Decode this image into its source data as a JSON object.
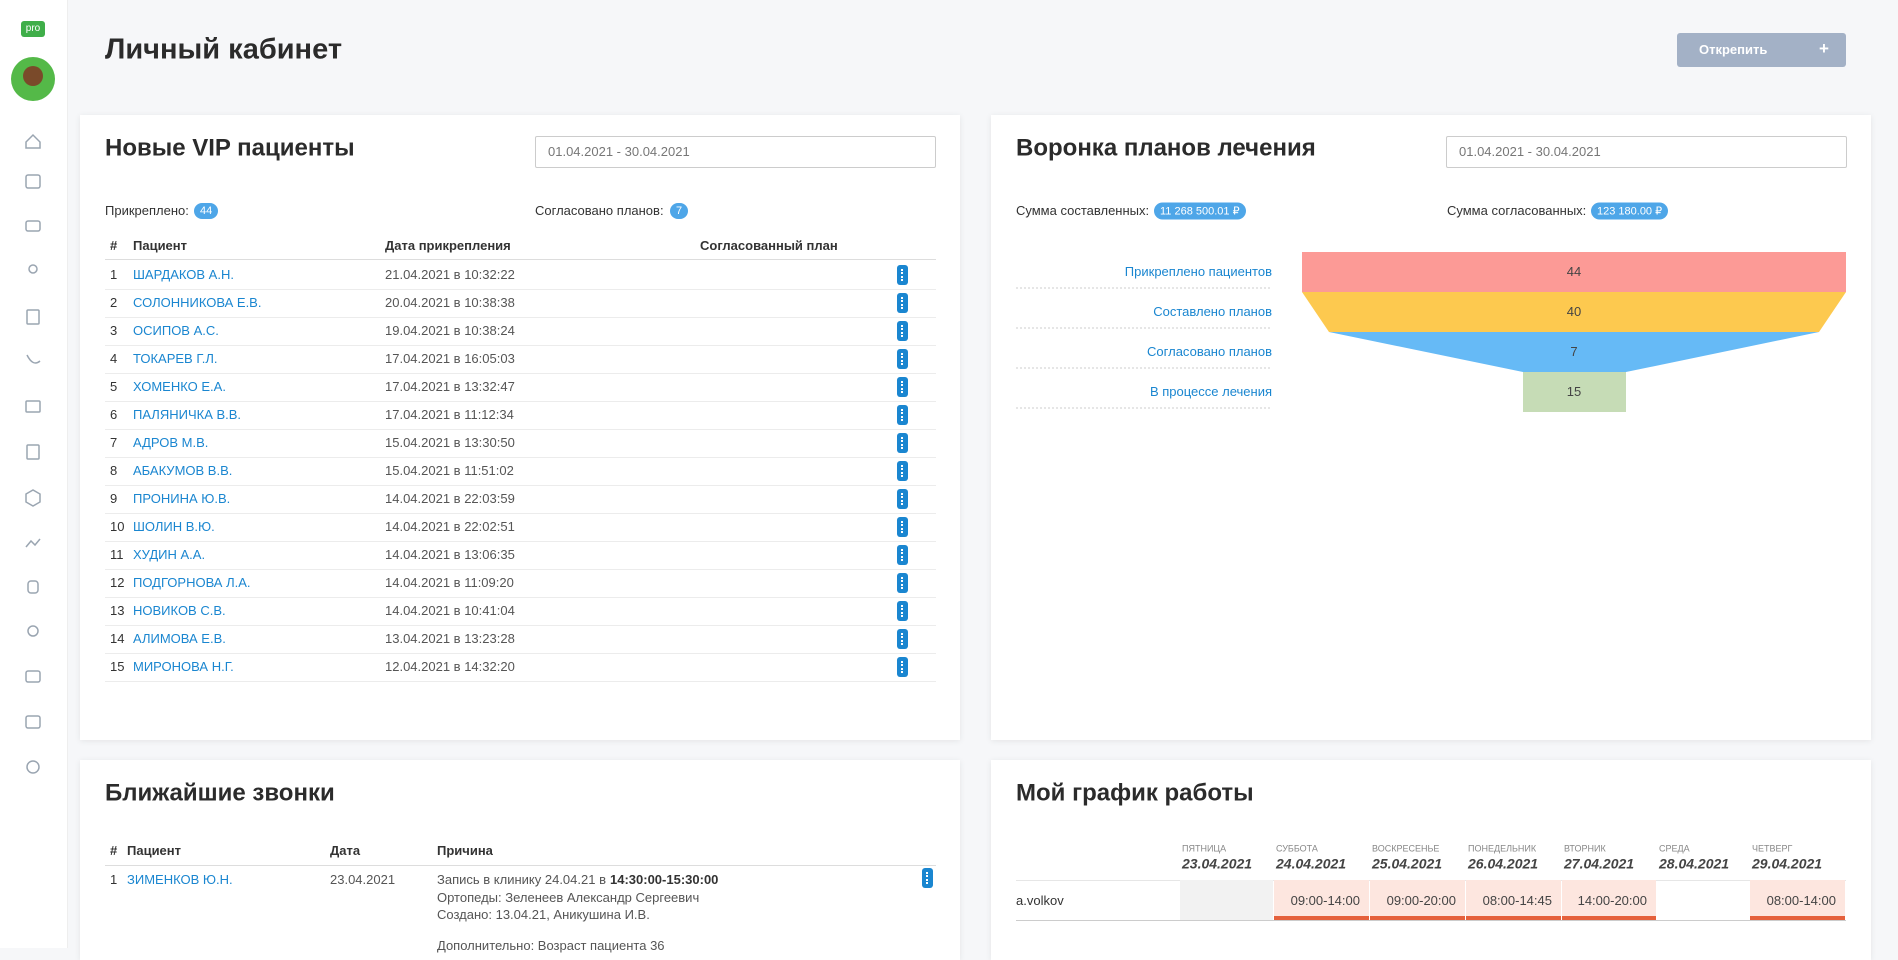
{
  "header": {
    "badge": "pro",
    "title": "Личный кабинет",
    "unpin_button": "Открепить"
  },
  "vip_patients": {
    "title": "Новые VIP пациенты",
    "date_range": "01.04.2021 - 30.04.2021",
    "attached_label": "Прикреплено:",
    "attached_count": 44,
    "agreed_label": "Согласовано планов:",
    "agreed_count": 7,
    "columns": [
      "#",
      "Пациент",
      "Дата прикрепления",
      "Согласованный план"
    ],
    "rows": [
      [
        1,
        "ШАРДАКОВ А.Н.",
        "21.04.2021 в 10:32:22"
      ],
      [
        2,
        "СОЛОННИКОВА Е.В.",
        "20.04.2021 в 10:38:38"
      ],
      [
        3,
        "ОСИПОВ А.С.",
        "19.04.2021 в 10:38:24"
      ],
      [
        4,
        "ТОКАРЕВ Г.Л.",
        "17.04.2021 в 16:05:03"
      ],
      [
        5,
        "ХОМЕНКО Е.А.",
        "17.04.2021 в 13:32:47"
      ],
      [
        6,
        "ПАЛЯНИЧКА В.В.",
        "17.04.2021 в 11:12:34"
      ],
      [
        7,
        "АДРОВ М.В.",
        "15.04.2021 в 13:30:50"
      ],
      [
        8,
        "АБАКУМОВ В.В.",
        "15.04.2021 в 11:51:02"
      ],
      [
        9,
        "ПРОНИНА Ю.В.",
        "14.04.2021 в 22:03:59"
      ],
      [
        10,
        "ШОЛИН В.Ю.",
        "14.04.2021 в 22:02:51"
      ],
      [
        11,
        "ХУДИН А.А.",
        "14.04.2021 в 13:06:35"
      ],
      [
        12,
        "ПОДГОРНОВА Л.А.",
        "14.04.2021 в 11:09:20"
      ],
      [
        13,
        "НОВИКОВ С.В.",
        "14.04.2021 в 10:41:04"
      ],
      [
        14,
        "АЛИМОВА Е.В.",
        "13.04.2021 в 13:23:28"
      ],
      [
        15,
        "МИРОНОВА Н.Г.",
        "12.04.2021 в 14:32:20"
      ]
    ]
  },
  "funnel": {
    "title": "Воронка планов лечения",
    "date_range": "01.04.2021 - 30.04.2021",
    "sum_composed_label": "Сумма составленных:",
    "sum_composed": "11 268 500.01 ₽",
    "sum_agreed_label": "Сумма согласованных:",
    "sum_agreed": "123 180.00 ₽",
    "stages": [
      {
        "label": "Прикреплено пациентов",
        "value": 44,
        "color": "#fc9a96"
      },
      {
        "label": "Составлено планов",
        "value": 40,
        "color": "#fdc94f"
      },
      {
        "label": "Согласовано планов",
        "value": 7,
        "color": "#66baf6"
      },
      {
        "label": "В процессе лечения",
        "value": 15,
        "color": "#c6dcb6"
      }
    ]
  },
  "calls": {
    "title": "Ближайшие звонки",
    "columns": [
      "#",
      "Пациент",
      "Дата",
      "Причина"
    ],
    "rows": [
      {
        "num": 1,
        "patient": "ЗИМЕНКОВ Ю.Н.",
        "date": "23.04.2021",
        "reason_prefix": "Запись в клинику 24.04.21 в",
        "reason_time": "14:30:00-15:30:00",
        "reason_lines": [
          "Ортопеды: Зеленеев Александр Сергеевич",
          "Создано: 13.04.21, Аникушина И.В.",
          "Дополнительно: Возраст пациента 36"
        ]
      }
    ]
  },
  "schedule": {
    "title": "Мой график работы",
    "user": "a.volkov",
    "days": [
      {
        "weekday": "ПЯТНИЦА",
        "date": "23.04.2021",
        "hours": null
      },
      {
        "weekday": "СУББОТА",
        "date": "24.04.2021",
        "hours": "09:00-14:00"
      },
      {
        "weekday": "ВОСКРЕСЕНЬЕ",
        "date": "25.04.2021",
        "hours": "09:00-20:00"
      },
      {
        "weekday": "ПОНЕДЕЛЬНИК",
        "date": "26.04.2021",
        "hours": "08:00-14:45"
      },
      {
        "weekday": "ВТОРНИК",
        "date": "27.04.2021",
        "hours": "14:00-20:00"
      },
      {
        "weekday": "СРЕДА",
        "date": "28.04.2021",
        "hours": null
      },
      {
        "weekday": "ЧЕТВЕРГ",
        "date": "29.04.2021",
        "hours": "08:00-14:00"
      }
    ]
  }
}
